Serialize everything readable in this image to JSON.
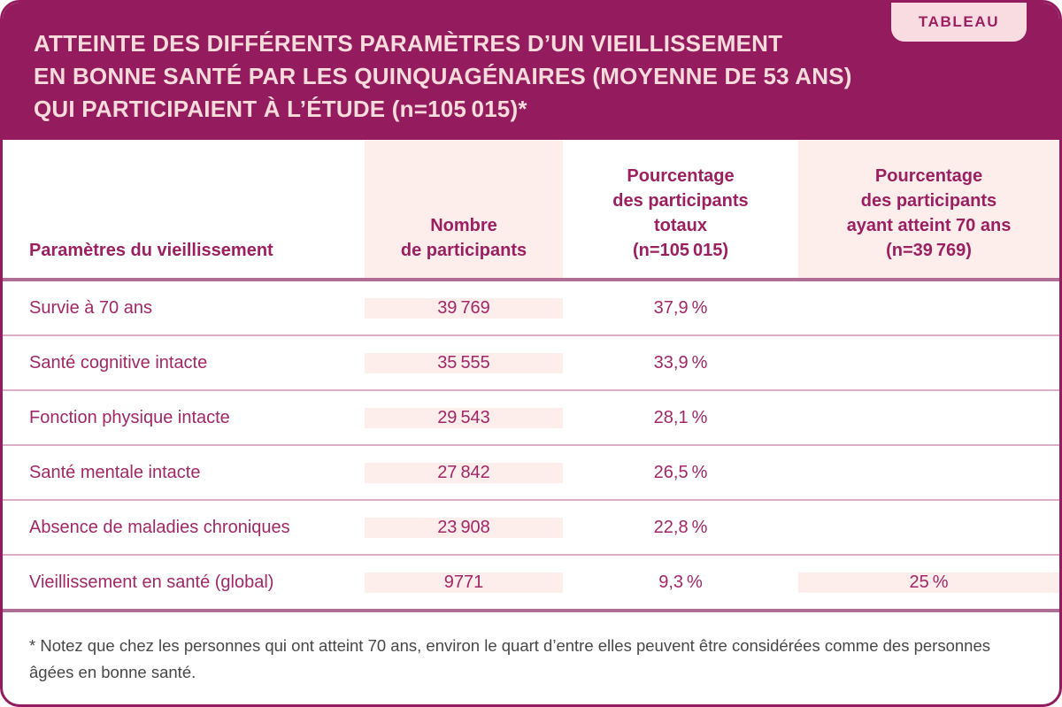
{
  "badge": {
    "label": "TABLEAU"
  },
  "title": {
    "lines": [
      "ATTEINTE DES DIFFÉRENTS PARAMÈTRES D’UN VIEILLISSEMENT",
      "EN BONNE SANTÉ PAR LES QUINQUAGÉNAIRES (MOYENNE DE 53 ANS)",
      "QUI PARTICIPAIENT À L’ÉTUDE (n=105 015)*"
    ]
  },
  "table": {
    "columns": [
      {
        "id": "parametres",
        "label_lines": [
          "Paramètres du vieillissement"
        ]
      },
      {
        "id": "nombre",
        "label_lines": [
          "Nombre",
          "de participants"
        ]
      },
      {
        "id": "pct_total",
        "label_lines": [
          "Pourcentage",
          "des participants",
          "totaux",
          "(n=105 015)"
        ]
      },
      {
        "id": "pct_70ans",
        "label_lines": [
          "Pourcentage",
          "des participants",
          "ayant atteint 70 ans",
          "(n=39 769)"
        ]
      }
    ],
    "rows": [
      {
        "param": "Survie à 70 ans",
        "n": "39 769",
        "pct_total": "37,9 %",
        "pct_70": ""
      },
      {
        "param": "Santé cognitive intacte",
        "n": "35 555",
        "pct_total": "33,9 %",
        "pct_70": ""
      },
      {
        "param": "Fonction physique intacte",
        "n": "29 543",
        "pct_total": "28,1 %",
        "pct_70": ""
      },
      {
        "param": "Santé mentale intacte",
        "n": "27 842",
        "pct_total": "26,5 %",
        "pct_70": ""
      },
      {
        "param": "Absence de maladies chroniques",
        "n": "23 908",
        "pct_total": "22,8 %",
        "pct_70": ""
      },
      {
        "param": "Vieillissement en santé (global)",
        "n": "9771",
        "pct_total": "9,3 %",
        "pct_70": "25 %"
      }
    ]
  },
  "footnote": "* Notez que chez les personnes qui ont atteint 70 ans, environ le quart d’entre elles peuvent être considérées comme des personnes âgées en bonne santé.",
  "colors": {
    "band_magenta": "#941b5e",
    "badge_pink": "#f8dce1",
    "column_pink": "#fdedeb",
    "title_pink": "#f8dbdb",
    "header_text": "#9c1f60",
    "data_text": "#a22767",
    "separator_light": "#dcaec6",
    "separator_medium": "#b06e96",
    "footnote_text": "#474747"
  }
}
